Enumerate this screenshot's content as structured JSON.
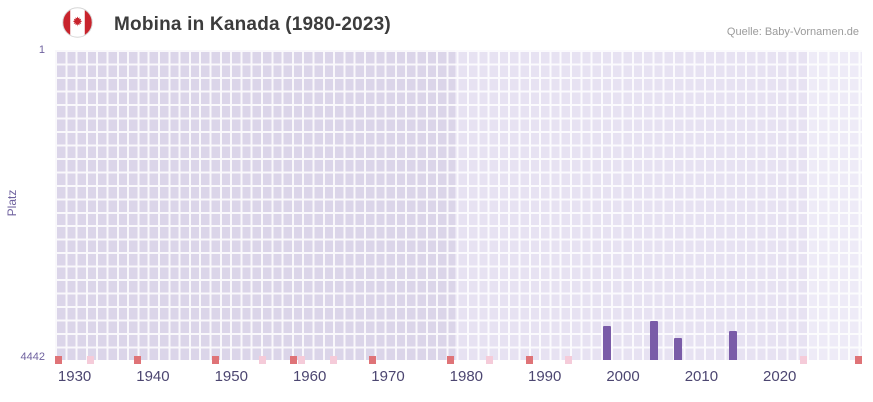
{
  "header": {
    "title": "Mobina in Kanada (1980-2023)",
    "source": "Quelle: Baby-Vornamen.de"
  },
  "flag": {
    "name": "canada-flag",
    "colors": {
      "red": "#C8232C",
      "white": "#FFFFFF",
      "ring": "#D6D6D6"
    }
  },
  "chart_data": {
    "type": "bar",
    "title": "Mobina in Kanada (1980-2023)",
    "xlabel": "",
    "ylabel": "Platz",
    "y_axis": {
      "min": 1,
      "max": 4442,
      "inverted": true,
      "top_label": "1",
      "bottom_label": "4442"
    },
    "x_axis": {
      "min": 1927.5,
      "max": 2030.5,
      "ticks": [
        1930,
        1940,
        1950,
        1960,
        1970,
        1980,
        1990,
        2000,
        2010,
        2020
      ]
    },
    "bars": [
      {
        "year": 1998,
        "rank": 3950
      },
      {
        "year": 2004,
        "rank": 3880
      },
      {
        "year": 2007,
        "rank": 4120
      },
      {
        "year": 2014,
        "rank": 4030
      }
    ],
    "baseline_markers": {
      "dark_years": [
        1928,
        1938,
        1948,
        1958,
        1968,
        1978,
        1988,
        2030
      ],
      "light_years": [
        1932,
        1954,
        1959,
        1963,
        1983,
        1993,
        2023
      ]
    },
    "bands": [
      {
        "from": 1927.5,
        "to": 1978.5,
        "shade": "dark"
      },
      {
        "from": 1978.5,
        "to": 2023.5,
        "shade": "mid"
      },
      {
        "from": 2023.5,
        "to": 2030.5,
        "shade": "light"
      }
    ],
    "colors": {
      "bar": "#7A5CA8",
      "marker_dark": "#DF7377",
      "marker_light": "#F5CBD9",
      "band_dark": "#DBD5E9",
      "band_mid": "#E7E2F2",
      "band_light": "#EEEBF7",
      "grid": "#FFFFFF",
      "axis_text": "#6F629F",
      "tick_text": "#4C4671",
      "title_text": "#3C3C3C",
      "source_text": "#9B9B9B"
    }
  }
}
